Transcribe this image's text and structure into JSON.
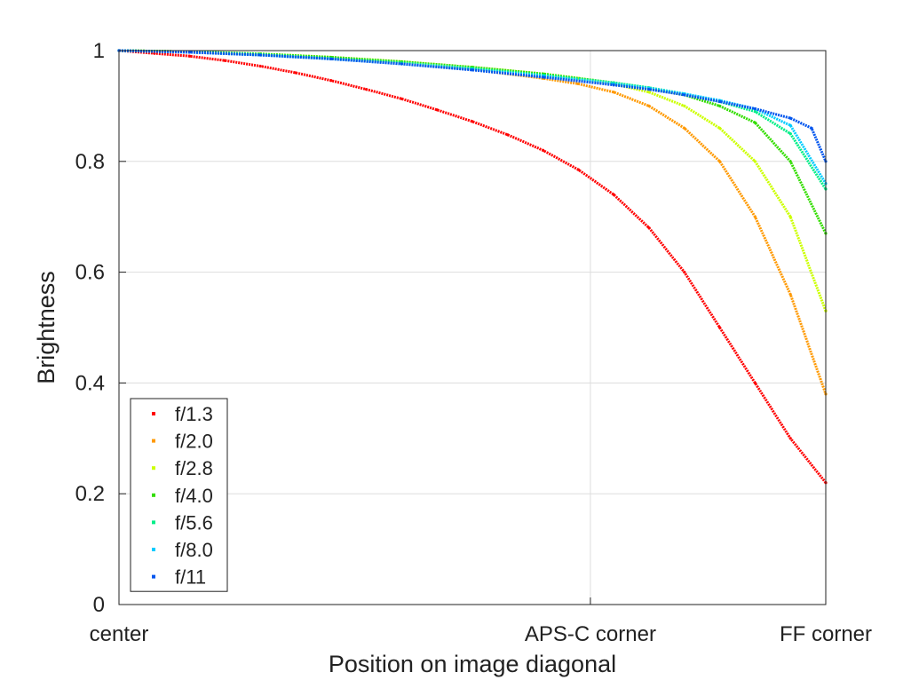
{
  "chart_data": {
    "type": "scatter",
    "title": "",
    "xlabel": "Position on image diagonal",
    "ylabel": "Brightness",
    "xlim": [
      0,
      1
    ],
    "ylim": [
      0,
      1
    ],
    "grid": true,
    "legend_position": "bottom-left",
    "x_ticks": [
      {
        "value": 0,
        "label": "center"
      },
      {
        "value": 0.667,
        "label": "APS-C corner"
      },
      {
        "value": 1,
        "label": "FF corner"
      }
    ],
    "y_ticks": [
      {
        "value": 0,
        "label": "0"
      },
      {
        "value": 0.2,
        "label": "0.2"
      },
      {
        "value": 0.4,
        "label": "0.4"
      },
      {
        "value": 0.6,
        "label": "0.6"
      },
      {
        "value": 0.8,
        "label": "0.8"
      },
      {
        "value": 1,
        "label": "1"
      }
    ],
    "series": [
      {
        "name": "f/1.3",
        "color": "#ff0000",
        "x": [
          0,
          0.05,
          0.1,
          0.15,
          0.2,
          0.25,
          0.3,
          0.35,
          0.4,
          0.45,
          0.5,
          0.55,
          0.6,
          0.65,
          0.7,
          0.75,
          0.8,
          0.85,
          0.9,
          0.95,
          1.0
        ],
        "y": [
          1.0,
          0.995,
          0.99,
          0.982,
          0.972,
          0.96,
          0.946,
          0.93,
          0.913,
          0.893,
          0.872,
          0.848,
          0.82,
          0.785,
          0.74,
          0.68,
          0.6,
          0.5,
          0.4,
          0.3,
          0.22
        ]
      },
      {
        "name": "f/2.0",
        "color": "#ff9900",
        "x": [
          0,
          0.1,
          0.2,
          0.3,
          0.4,
          0.5,
          0.6,
          0.65,
          0.7,
          0.75,
          0.8,
          0.85,
          0.9,
          0.95,
          1.0
        ],
        "y": [
          1.0,
          0.998,
          0.993,
          0.986,
          0.977,
          0.966,
          0.95,
          0.94,
          0.925,
          0.9,
          0.86,
          0.8,
          0.7,
          0.56,
          0.38
        ]
      },
      {
        "name": "f/2.8",
        "color": "#ccff00",
        "x": [
          0,
          0.1,
          0.2,
          0.3,
          0.4,
          0.5,
          0.6,
          0.65,
          0.7,
          0.75,
          0.8,
          0.85,
          0.9,
          0.95,
          1.0
        ],
        "y": [
          1.0,
          0.998,
          0.994,
          0.988,
          0.98,
          0.97,
          0.958,
          0.95,
          0.94,
          0.925,
          0.9,
          0.86,
          0.8,
          0.7,
          0.53
        ]
      },
      {
        "name": "f/4.0",
        "color": "#33dd00",
        "x": [
          0,
          0.1,
          0.2,
          0.3,
          0.4,
          0.5,
          0.6,
          0.7,
          0.75,
          0.8,
          0.85,
          0.9,
          0.95,
          1.0
        ],
        "y": [
          1.0,
          0.998,
          0.994,
          0.988,
          0.98,
          0.97,
          0.958,
          0.942,
          0.932,
          0.92,
          0.9,
          0.87,
          0.8,
          0.67
        ]
      },
      {
        "name": "f/5.6",
        "color": "#00ee88",
        "x": [
          0,
          0.1,
          0.2,
          0.3,
          0.4,
          0.5,
          0.6,
          0.7,
          0.75,
          0.8,
          0.85,
          0.9,
          0.95,
          1.0
        ],
        "y": [
          1.0,
          0.998,
          0.993,
          0.986,
          0.978,
          0.968,
          0.956,
          0.942,
          0.933,
          0.922,
          0.908,
          0.89,
          0.85,
          0.75
        ]
      },
      {
        "name": "f/8.0",
        "color": "#00ccff",
        "x": [
          0,
          0.1,
          0.2,
          0.3,
          0.4,
          0.5,
          0.6,
          0.7,
          0.75,
          0.8,
          0.85,
          0.9,
          0.95,
          1.0
        ],
        "y": [
          1.0,
          0.997,
          0.992,
          0.985,
          0.976,
          0.966,
          0.954,
          0.94,
          0.932,
          0.922,
          0.91,
          0.895,
          0.865,
          0.76
        ]
      },
      {
        "name": "f/11",
        "color": "#0055ee",
        "x": [
          0,
          0.1,
          0.2,
          0.3,
          0.4,
          0.5,
          0.6,
          0.7,
          0.75,
          0.8,
          0.85,
          0.9,
          0.95,
          0.98,
          1.0
        ],
        "y": [
          1.0,
          0.997,
          0.992,
          0.985,
          0.976,
          0.965,
          0.952,
          0.938,
          0.93,
          0.92,
          0.908,
          0.895,
          0.878,
          0.86,
          0.8
        ]
      }
    ]
  }
}
